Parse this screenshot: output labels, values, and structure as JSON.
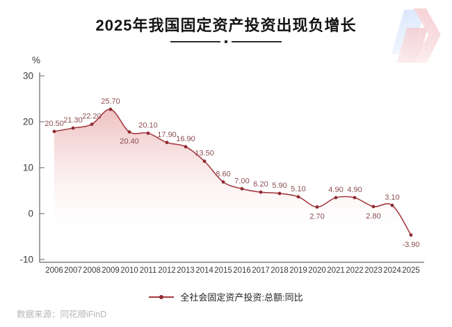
{
  "title": "2025年我国固定资产投资出现负增长",
  "unit_label": "%",
  "legend": "全社会固定资产投资:总额:同比",
  "source": "数据来源：同花顺iFinD",
  "colors": {
    "line": "#a63b42",
    "marker": "#8e2a30",
    "point_label": "#8c4c50",
    "area_top": "#e08a8a",
    "area_mid": "#eec0c0",
    "axis": "#666666",
    "tick_text": "#3a3a3a",
    "title_text": "#141414",
    "legend_text": "#222222",
    "source_text": "#b5b5b5"
  },
  "chart_data": {
    "type": "area",
    "title": "2025年我国固定资产投资出现负增长",
    "xlabel": "",
    "ylabel": "%",
    "ylim": [
      -10,
      30
    ],
    "yticks": [
      30,
      20,
      10,
      0,
      -10
    ],
    "grid": false,
    "legend_position": "bottom",
    "categories": [
      "2006",
      "2007",
      "2008",
      "2009",
      "2010",
      "2011",
      "2012",
      "2013",
      "2014",
      "2015",
      "2016",
      "2017",
      "2018",
      "2019",
      "2020",
      "2021",
      "2022",
      "2023",
      "2024",
      "2025"
    ],
    "series": [
      {
        "name": "全社会固定资产投资:总额:同比",
        "values": [
          20.5,
          21.3,
          22.2,
          25.7,
          20.4,
          20.1,
          17.9,
          16.9,
          13.5,
          8.6,
          7.0,
          6.2,
          5.9,
          5.1,
          2.7,
          4.9,
          4.9,
          2.8,
          3.1,
          -3.9
        ],
        "value_labels": [
          "20.50",
          "21.30",
          "22.20",
          "25.70",
          "20.40",
          "20.10",
          "17.90",
          "16.90",
          "13.50",
          "8.60",
          "7.00",
          "6.20",
          "5.90",
          "5.10",
          "2.70",
          "4.90",
          "4.90",
          "2.80",
          "3.10",
          "-3.90"
        ],
        "labels_below_categories": [
          "2010",
          "2020",
          "2023",
          "2025"
        ]
      }
    ]
  }
}
